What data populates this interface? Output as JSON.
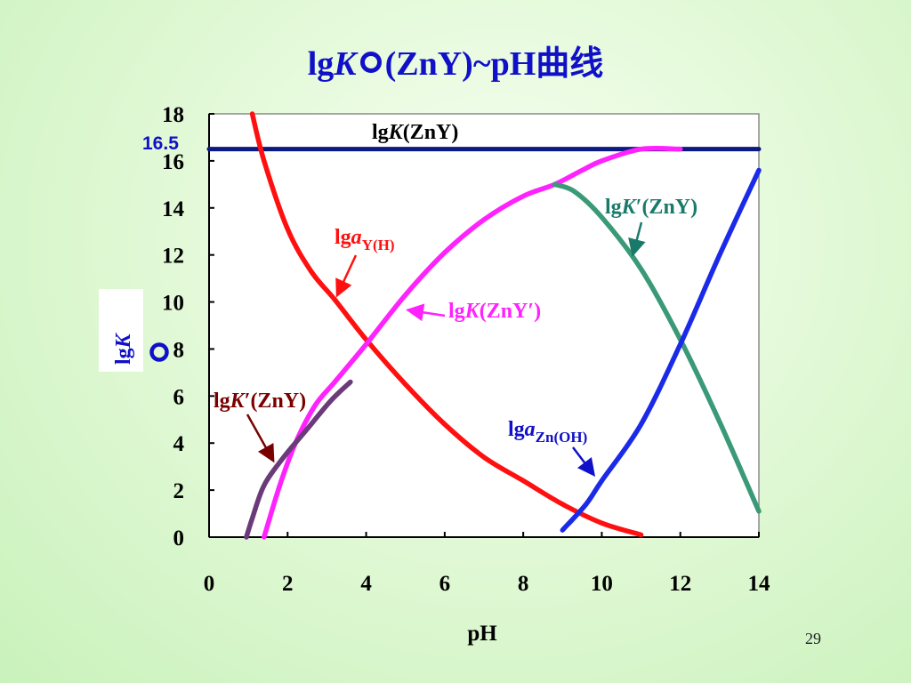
{
  "slide": {
    "title_prefix": "lg",
    "title_k": "K",
    "title_suffix": "(ZnY)~pH曲线",
    "page_number": "29"
  },
  "chart_data": {
    "type": "line",
    "xlabel": "pH",
    "ylabel_prefix": "lg",
    "ylabel_k": "K",
    "xlim": [
      0,
      14
    ],
    "ylim": [
      0,
      18
    ],
    "xticks": [
      "0",
      "2",
      "4",
      "6",
      "8",
      "10",
      "12",
      "14"
    ],
    "yticks": [
      "0",
      "2",
      "4",
      "6",
      "8",
      "10",
      "12",
      "14",
      "16",
      "18"
    ],
    "grid": false,
    "hline_label": "16.5",
    "colors": {
      "lgK_ZnY": "#0a1a80",
      "lga_YH": "#ff1010",
      "lgK_ZnY_prime": "#ff22ff",
      "lgK_prime_ZnY_right": "#3a9a78",
      "lga_ZnOH": "#1a2ae8",
      "lgK_prime_ZnY_left": "#6a3a7a"
    },
    "series": [
      {
        "key": "lgK_ZnY",
        "x": [
          0,
          14
        ],
        "y": [
          16.5,
          16.5
        ]
      },
      {
        "key": "lga_YH",
        "x": [
          1.1,
          1.4,
          2,
          2.6,
          3.2,
          4,
          5,
          6,
          7,
          8,
          9,
          10,
          11
        ],
        "y": [
          18,
          16,
          13.1,
          11.3,
          10.1,
          8.4,
          6.5,
          4.8,
          3.4,
          2.4,
          1.4,
          0.6,
          0.1
        ]
      },
      {
        "key": "lgK_ZnY_prime",
        "x": [
          1.4,
          1.8,
          2.2,
          2.7,
          3.2,
          4,
          5,
          6,
          7,
          8,
          8.8,
          9.5,
          10,
          11,
          12
        ],
        "y": [
          0,
          2.2,
          4,
          5.6,
          6.6,
          8.2,
          10.3,
          12.1,
          13.5,
          14.5,
          15,
          15.6,
          16,
          16.5,
          16.5
        ]
      },
      {
        "key": "lgK_prime_ZnY_right",
        "x": [
          8.8,
          9.3,
          10,
          11,
          12,
          13,
          14
        ],
        "y": [
          15,
          14.7,
          13.6,
          11.4,
          8.4,
          4.9,
          1.1
        ]
      },
      {
        "key": "lga_ZnOH",
        "x": [
          9,
          9.6,
          10,
          11,
          12,
          13,
          14
        ],
        "y": [
          0.3,
          1.4,
          2.4,
          4.8,
          8.2,
          12,
          15.6
        ]
      },
      {
        "key": "lgK_prime_ZnY_left",
        "x": [
          0.95,
          1.1,
          1.4,
          1.9,
          2.5,
          3.1,
          3.6
        ],
        "y": [
          0,
          0.8,
          2.2,
          3.4,
          4.6,
          5.8,
          6.6
        ]
      }
    ],
    "annotations": {
      "lgK_ZnY": {
        "pre": "lg",
        "k": "K",
        "post": "(ZnY)"
      },
      "lga_YH": {
        "pre": "lg",
        "a": "a",
        "sub": "Y(H)"
      },
      "lgK_ZnY_prime": {
        "pre": "lg",
        "k": "K",
        "post": "(ZnY′)"
      },
      "lgK_prime_right": {
        "pre": "lg",
        "k": "K",
        "post": "′(ZnY)"
      },
      "lgK_prime_left": {
        "pre": "lg",
        "k": "K",
        "post": "′(ZnY)"
      },
      "lga_ZnOH": {
        "pre": "lg",
        "a": "a",
        "sub": "Zn(OH)"
      }
    }
  }
}
